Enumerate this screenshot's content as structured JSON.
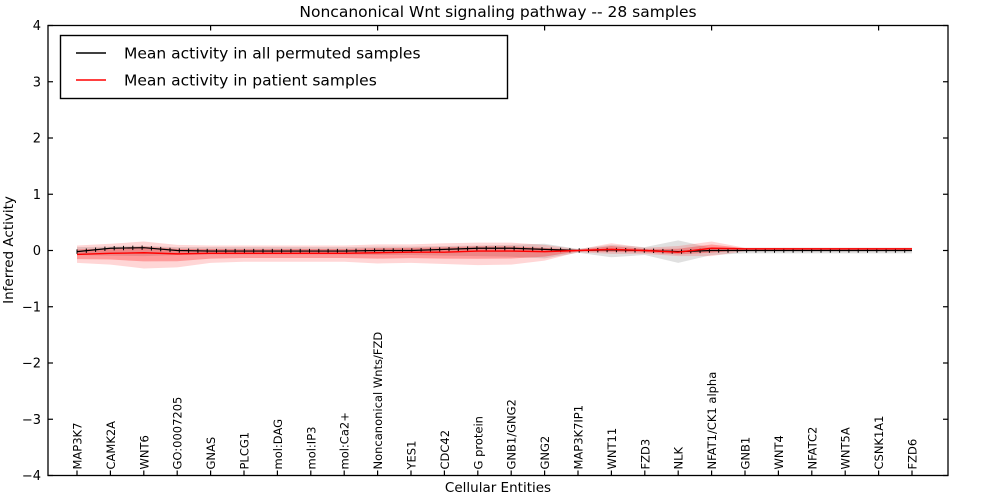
{
  "chart_data": {
    "type": "line",
    "title": "Noncanonical Wnt signaling pathway -- 28 samples",
    "xlabel": "Cellular Entities",
    "ylabel": "Inferred Activity",
    "ylim": [
      -4,
      4
    ],
    "yticks": [
      4,
      3,
      2,
      1,
      0,
      -1,
      -2,
      -3,
      -4
    ],
    "grid": false,
    "legend_position": "upper left",
    "categories": [
      "MAP3K7",
      "CAMK2A",
      "WNT6",
      "GO:0007205",
      "GNAS",
      "PLCG1",
      "mol:DAG",
      "mol:IP3",
      "mol:Ca2+",
      "Noncanonical Wnts/FZD",
      "YES1",
      "CDC42",
      "G protein",
      "GNB1/GNG2",
      "GNG2",
      "MAP3K7IP1",
      "WNT11",
      "FZD3",
      "NLK",
      "NFAT1/CK1 alpha",
      "GNB1",
      "WNT4",
      "NFATC2",
      "WNT5A",
      "CSNK1A1",
      "FZD6"
    ],
    "series": [
      {
        "name": "Mean activity in all permuted samples",
        "color": "#000000",
        "values": [
          -0.02,
          0.04,
          0.05,
          0.0,
          -0.01,
          -0.01,
          -0.01,
          -0.01,
          -0.01,
          0.0,
          0.0,
          0.02,
          0.04,
          0.04,
          0.02,
          0.0,
          0.01,
          0.0,
          -0.02,
          0.0,
          0.0,
          0.0,
          0.0,
          0.0,
          0.0,
          0.0
        ]
      },
      {
        "name": "Mean activity in patient samples",
        "color": "#ff0000",
        "values": [
          -0.07,
          -0.05,
          -0.04,
          -0.06,
          -0.05,
          -0.05,
          -0.05,
          -0.05,
          -0.05,
          -0.04,
          -0.03,
          -0.03,
          -0.01,
          -0.01,
          -0.02,
          0.0,
          0.02,
          0.0,
          -0.03,
          0.04,
          0.03,
          0.03,
          0.03,
          0.03,
          0.03,
          0.03
        ]
      }
    ],
    "bands": [
      {
        "name": "permuted-samples-spread",
        "color": "#999999",
        "opacity": 0.3,
        "upper": [
          0.06,
          0.07,
          0.08,
          0.06,
          0.06,
          0.06,
          0.06,
          0.06,
          0.06,
          0.07,
          0.07,
          0.08,
          0.09,
          0.1,
          0.12,
          0.03,
          0.1,
          0.06,
          0.18,
          0.05,
          0.05,
          0.05,
          0.05,
          0.05,
          0.05,
          0.05
        ],
        "lower": [
          -0.08,
          -0.09,
          -0.1,
          -0.08,
          -0.07,
          -0.07,
          -0.07,
          -0.07,
          -0.07,
          -0.08,
          -0.08,
          -0.09,
          -0.1,
          -0.11,
          -0.14,
          -0.04,
          -0.12,
          -0.08,
          -0.22,
          -0.08,
          -0.05,
          -0.05,
          -0.05,
          -0.05,
          -0.05,
          -0.05
        ]
      },
      {
        "name": "patient-samples-spread",
        "color": "#ff0000",
        "opacity": 0.16,
        "upper": [
          0.09,
          0.12,
          0.16,
          0.1,
          0.09,
          0.09,
          0.09,
          0.09,
          0.09,
          0.11,
          0.11,
          0.13,
          0.14,
          0.14,
          0.1,
          0.02,
          0.13,
          0.05,
          0.08,
          0.16,
          0.05,
          0.05,
          0.05,
          0.05,
          0.05,
          0.05
        ],
        "lower": [
          -0.22,
          -0.25,
          -0.32,
          -0.3,
          -0.22,
          -0.2,
          -0.2,
          -0.2,
          -0.2,
          -0.23,
          -0.22,
          -0.24,
          -0.26,
          -0.25,
          -0.18,
          -0.03,
          -0.06,
          -0.06,
          -0.1,
          -0.1,
          -0.01,
          -0.01,
          -0.01,
          -0.01,
          -0.01,
          -0.01
        ]
      }
    ]
  }
}
